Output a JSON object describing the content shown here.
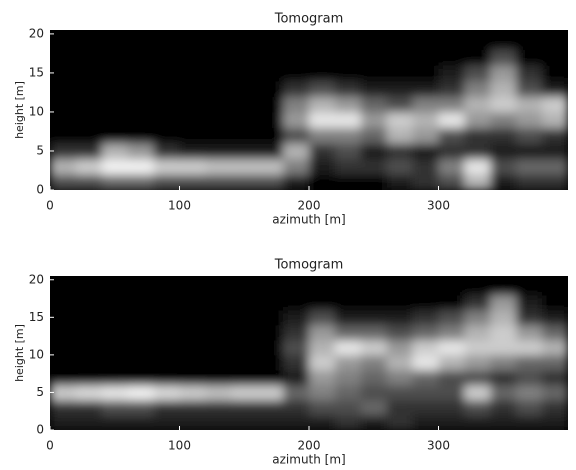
{
  "chart_data": [
    {
      "type": "heatmap",
      "title": "Tomogram",
      "xlabel": "azimuth [m]",
      "ylabel": "height [m]",
      "xlim": [
        0,
        400
      ],
      "ylim": [
        0,
        20.5
      ],
      "xticks": [
        0,
        100,
        200,
        300
      ],
      "yticks": [
        0,
        5,
        10,
        15,
        20
      ],
      "x": [
        10,
        30,
        50,
        70,
        90,
        110,
        130,
        150,
        170,
        190,
        210,
        230,
        250,
        270,
        290,
        310,
        330,
        350,
        370,
        390
      ],
      "y": [
        1,
        3,
        5,
        7,
        9,
        11,
        13,
        15,
        17,
        19
      ],
      "z": [
        [
          0.3,
          0.3,
          0.4,
          0.4,
          0.3,
          0.3,
          0.3,
          0.3,
          0.3,
          0.1,
          0,
          0,
          0,
          0.1,
          0.2,
          0.3,
          0.7,
          0.1,
          0.2,
          0.2
        ],
        [
          0.7,
          0.8,
          0.95,
          0.95,
          0.8,
          0.8,
          0.75,
          0.75,
          0.75,
          0.5,
          0.1,
          0.2,
          0.2,
          0.3,
          0.2,
          0.5,
          0.9,
          0.3,
          0.4,
          0.4
        ],
        [
          0.2,
          0.2,
          0.7,
          0.6,
          0.2,
          0.1,
          0.1,
          0.1,
          0.1,
          0.7,
          0.2,
          0.3,
          0.1,
          0.2,
          0.1,
          0.2,
          0.2,
          0.1,
          0.1,
          0.1
        ],
        [
          0,
          0,
          0,
          0,
          0,
          0,
          0,
          0,
          0,
          0.3,
          0.5,
          0.5,
          0.4,
          0.7,
          0.6,
          0.3,
          0.2,
          0.2,
          0.3,
          0.2
        ],
        [
          0,
          0,
          0,
          0,
          0,
          0,
          0,
          0,
          0,
          0.6,
          0.9,
          0.9,
          0.6,
          0.8,
          0.7,
          0.9,
          0.6,
          0.5,
          0.6,
          0.7
        ],
        [
          0,
          0,
          0,
          0,
          0,
          0,
          0,
          0,
          0,
          0.5,
          0.7,
          0.6,
          0.4,
          0.3,
          0.5,
          0.5,
          0.7,
          0.8,
          0.7,
          0.8
        ],
        [
          0,
          0,
          0,
          0,
          0,
          0,
          0,
          0,
          0,
          0.2,
          0.3,
          0.2,
          0.1,
          0.1,
          0.1,
          0.2,
          0.5,
          0.7,
          0.3,
          0.1
        ],
        [
          0,
          0,
          0,
          0,
          0,
          0,
          0,
          0,
          0,
          0,
          0,
          0,
          0,
          0,
          0,
          0.1,
          0.3,
          0.6,
          0.2,
          0
        ],
        [
          0,
          0,
          0,
          0,
          0,
          0,
          0,
          0,
          0,
          0,
          0,
          0,
          0,
          0,
          0,
          0,
          0,
          0.3,
          0,
          0
        ],
        [
          0,
          0,
          0,
          0,
          0,
          0,
          0,
          0,
          0,
          0,
          0,
          0,
          0,
          0,
          0,
          0,
          0,
          0,
          0,
          0
        ]
      ]
    },
    {
      "type": "heatmap",
      "title": "Tomogram",
      "xlabel": "azimuth [m]",
      "ylabel": "height [m]",
      "xlim": [
        0,
        400
      ],
      "ylim": [
        0,
        20.5
      ],
      "xticks": [
        0,
        100,
        200,
        300
      ],
      "yticks": [
        0,
        5,
        10,
        15,
        20
      ],
      "x": [
        10,
        30,
        50,
        70,
        90,
        110,
        130,
        150,
        170,
        190,
        210,
        230,
        250,
        270,
        290,
        310,
        330,
        350,
        370,
        390
      ],
      "y": [
        1,
        3,
        5,
        7,
        9,
        11,
        13,
        15,
        17,
        19
      ],
      "z": [
        [
          0.1,
          0.1,
          0.1,
          0.1,
          0.1,
          0.1,
          0.1,
          0.1,
          0.1,
          0.1,
          0.1,
          0.2,
          0.1,
          0.2,
          0.1,
          0.1,
          0.1,
          0.1,
          0.1,
          0.1
        ],
        [
          0.2,
          0.2,
          0.3,
          0.3,
          0.2,
          0.2,
          0.2,
          0.2,
          0.2,
          0.2,
          0.3,
          0.3,
          0.4,
          0.2,
          0.2,
          0.2,
          0.3,
          0.2,
          0.3,
          0.2
        ],
        [
          0.8,
          0.85,
          0.9,
          0.95,
          0.85,
          0.8,
          0.75,
          0.8,
          0.8,
          0.4,
          0.5,
          0.4,
          0.3,
          0.3,
          0.3,
          0.3,
          0.8,
          0.4,
          0.5,
          0.4
        ],
        [
          0,
          0,
          0,
          0,
          0,
          0,
          0,
          0,
          0,
          0.1,
          0.6,
          0.5,
          0.4,
          0.5,
          0.4,
          0.3,
          0.3,
          0.2,
          0.3,
          0.2
        ],
        [
          0,
          0,
          0,
          0,
          0,
          0,
          0,
          0,
          0,
          0.2,
          0.8,
          0.6,
          0.5,
          0.7,
          0.9,
          0.7,
          0.6,
          0.5,
          0.4,
          0.4
        ],
        [
          0,
          0,
          0,
          0,
          0,
          0,
          0,
          0,
          0,
          0.3,
          0.7,
          0.9,
          0.8,
          0.6,
          0.8,
          0.9,
          0.8,
          0.8,
          0.8,
          0.7
        ],
        [
          0,
          0,
          0,
          0,
          0,
          0,
          0,
          0,
          0,
          0.2,
          0.6,
          0.4,
          0.4,
          0.3,
          0.4,
          0.5,
          0.7,
          0.8,
          0.6,
          0.4
        ],
        [
          0,
          0,
          0,
          0,
          0,
          0,
          0,
          0,
          0,
          0.1,
          0.3,
          0.1,
          0.1,
          0.1,
          0.2,
          0.3,
          0.5,
          0.7,
          0.2,
          0.1
        ],
        [
          0,
          0,
          0,
          0,
          0,
          0,
          0,
          0,
          0,
          0,
          0,
          0,
          0,
          0,
          0,
          0,
          0.2,
          0.6,
          0.1,
          0
        ],
        [
          0,
          0,
          0,
          0,
          0,
          0,
          0,
          0,
          0,
          0,
          0,
          0,
          0,
          0,
          0,
          0,
          0,
          0,
          0,
          0
        ]
      ]
    }
  ]
}
